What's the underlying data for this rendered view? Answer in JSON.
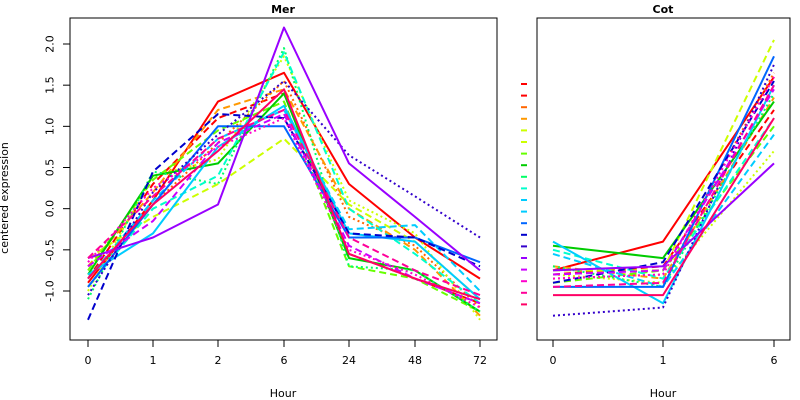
{
  "figure": {
    "ylabel": "centered expression"
  },
  "chart_data": [
    {
      "type": "line",
      "title": "Mer",
      "xlabel": "Hour",
      "ylabel": "centered expression",
      "x": [
        "0",
        "1",
        "2",
        "6",
        "24",
        "48",
        "72"
      ],
      "ylim": [
        -1.5,
        2.3
      ],
      "yticks": [
        -1.0,
        -0.5,
        0.0,
        0.5,
        1.0,
        1.5,
        2.0
      ],
      "grid": false,
      "series": [
        {
          "color": "#ff0000",
          "dash": "solid",
          "values": [
            -0.9,
            0.1,
            1.3,
            1.65,
            0.3,
            -0.35,
            -0.85
          ]
        },
        {
          "color": "#ff0000",
          "dash": "dashed",
          "values": [
            -0.85,
            0.3,
            1.1,
            1.4,
            -0.55,
            -0.85,
            -1.15
          ]
        },
        {
          "color": "#ff6600",
          "dash": "dotted",
          "values": [
            -0.95,
            0.05,
            0.8,
            1.55,
            -0.1,
            -0.45,
            -1.2
          ]
        },
        {
          "color": "#ff9900",
          "dash": "dashed",
          "values": [
            -0.7,
            0.2,
            1.2,
            1.45,
            0.0,
            -0.5,
            -1.3
          ]
        },
        {
          "color": "#ccff00",
          "dash": "dashed",
          "values": [
            -0.6,
            -0.1,
            0.3,
            0.85,
            0.05,
            -0.4,
            -1.1
          ]
        },
        {
          "color": "#ccff00",
          "dash": "dotted",
          "values": [
            -1.0,
            0.4,
            0.6,
            1.85,
            0.1,
            -0.3,
            -1.35
          ]
        },
        {
          "color": "#66ff00",
          "dash": "dashed",
          "values": [
            -0.75,
            0.35,
            0.95,
            1.3,
            -0.7,
            -0.85,
            -1.25
          ]
        },
        {
          "color": "#00cc00",
          "dash": "solid",
          "values": [
            -0.8,
            0.4,
            0.55,
            1.4,
            -0.6,
            -0.75,
            -1.25
          ]
        },
        {
          "color": "#00ff66",
          "dash": "dotted",
          "values": [
            -1.1,
            0.45,
            0.3,
            1.95,
            -0.7,
            -0.75,
            -1.25
          ]
        },
        {
          "color": "#00ffcc",
          "dash": "dashed",
          "values": [
            -0.95,
            0.0,
            0.4,
            1.9,
            0.0,
            -0.55,
            -1.15
          ]
        },
        {
          "color": "#00ccff",
          "dash": "solid",
          "values": [
            -0.8,
            -0.3,
            0.75,
            1.25,
            -0.3,
            -0.4,
            -1.1
          ]
        },
        {
          "color": "#00ccff",
          "dash": "dashed",
          "values": [
            -0.85,
            0.1,
            0.85,
            1.2,
            -0.25,
            -0.2,
            -1.0
          ]
        },
        {
          "color": "#0066ff",
          "dash": "solid",
          "values": [
            -0.95,
            0.05,
            1.0,
            1.0,
            -0.35,
            -0.35,
            -0.65
          ]
        },
        {
          "color": "#0000cc",
          "dash": "dashed",
          "values": [
            -1.35,
            0.45,
            1.15,
            1.1,
            -0.3,
            -0.35,
            -0.7
          ]
        },
        {
          "color": "#3300cc",
          "dash": "dotted",
          "values": [
            -1.05,
            0.2,
            0.9,
            1.55,
            0.65,
            0.15,
            -0.35
          ]
        },
        {
          "color": "#9900ff",
          "dash": "solid",
          "values": [
            -0.6,
            -0.35,
            0.05,
            2.2,
            0.55,
            -0.1,
            -0.75
          ]
        },
        {
          "color": "#cc00ff",
          "dash": "dashed",
          "values": [
            -0.7,
            -0.15,
            0.8,
            1.15,
            -0.45,
            -0.85,
            -1.15
          ]
        },
        {
          "color": "#ff00cc",
          "dash": "dotted",
          "values": [
            -0.65,
            0.25,
            0.75,
            1.1,
            -0.5,
            -0.8,
            -1.2
          ]
        },
        {
          "color": "#ff0099",
          "dash": "dashed",
          "values": [
            -0.6,
            0.15,
            0.85,
            1.2,
            -0.35,
            -0.75,
            -1.05
          ]
        },
        {
          "color": "#ff0066",
          "dash": "solid",
          "values": [
            -0.85,
            0.05,
            0.7,
            1.45,
            -0.55,
            -0.85,
            -1.1
          ]
        }
      ]
    },
    {
      "type": "line",
      "title": "Cot",
      "xlabel": "Hour",
      "x": [
        "0",
        "1",
        "6"
      ],
      "ylim": [
        -1.5,
        2.3
      ],
      "grid": false,
      "series": [
        {
          "color": "#ff0000",
          "dash": "solid",
          "values": [
            -0.75,
            -0.4,
            1.6
          ]
        },
        {
          "color": "#ff0000",
          "dash": "dashed",
          "values": [
            -0.8,
            -0.7,
            1.2
          ]
        },
        {
          "color": "#ff6600",
          "dash": "dotted",
          "values": [
            -0.85,
            -0.8,
            1.65
          ]
        },
        {
          "color": "#ff9900",
          "dash": "dashed",
          "values": [
            -0.7,
            -0.85,
            1.35
          ]
        },
        {
          "color": "#ccff00",
          "dash": "dashed",
          "values": [
            -0.75,
            -0.75,
            2.05
          ]
        },
        {
          "color": "#ccff00",
          "dash": "dotted",
          "values": [
            -0.8,
            -0.9,
            0.7
          ]
        },
        {
          "color": "#66ff00",
          "dash": "dashed",
          "values": [
            -0.9,
            -0.75,
            1.0
          ]
        },
        {
          "color": "#00cc00",
          "dash": "solid",
          "values": [
            -0.45,
            -0.6,
            1.3
          ]
        },
        {
          "color": "#00ff66",
          "dash": "dotted",
          "values": [
            -0.7,
            -0.95,
            1.4
          ]
        },
        {
          "color": "#00ffcc",
          "dash": "dashed",
          "values": [
            -0.5,
            -0.85,
            1.1
          ]
        },
        {
          "color": "#00ccff",
          "dash": "solid",
          "values": [
            -0.4,
            -1.15,
            1.5
          ]
        },
        {
          "color": "#00ccff",
          "dash": "dashed",
          "values": [
            -0.55,
            -0.95,
            0.9
          ]
        },
        {
          "color": "#0066ff",
          "dash": "solid",
          "values": [
            -0.95,
            -0.95,
            1.85
          ]
        },
        {
          "color": "#0000cc",
          "dash": "dashed",
          "values": [
            -0.9,
            -0.65,
            1.55
          ]
        },
        {
          "color": "#3300cc",
          "dash": "dotted",
          "values": [
            -1.3,
            -1.2,
            1.75
          ]
        },
        {
          "color": "#9900ff",
          "dash": "solid",
          "values": [
            -0.75,
            -0.7,
            0.55
          ]
        },
        {
          "color": "#cc00ff",
          "dash": "dashed",
          "values": [
            -0.8,
            -0.75,
            1.45
          ]
        },
        {
          "color": "#ff00cc",
          "dash": "dotted",
          "values": [
            -0.85,
            -0.8,
            1.6
          ]
        },
        {
          "color": "#ff0099",
          "dash": "dashed",
          "values": [
            -0.95,
            -0.9,
            1.5
          ]
        },
        {
          "color": "#ff0066",
          "dash": "solid",
          "values": [
            -1.05,
            -1.05,
            1.1
          ]
        }
      ]
    }
  ]
}
